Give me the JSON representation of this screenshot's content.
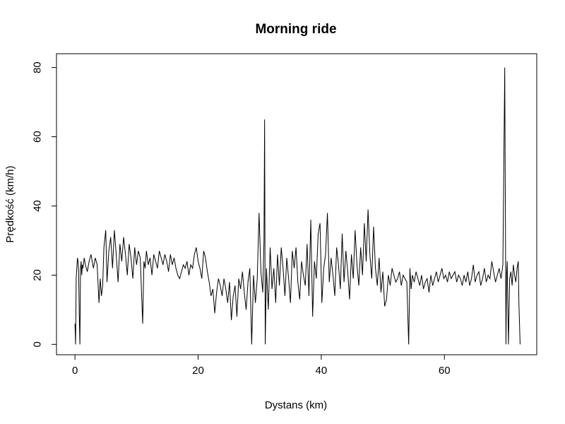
{
  "chart_data": {
    "type": "line",
    "title": "Morning ride",
    "xlabel": "Dystans (km)",
    "ylabel": "Prędkość (km/h)",
    "xlim": [
      -3,
      75
    ],
    "ylim": [
      -3,
      84
    ],
    "xticks": [
      0,
      20,
      40,
      60
    ],
    "yticks": [
      0,
      20,
      40,
      60,
      80
    ],
    "grid": false,
    "line_color": "#000000",
    "series": [
      {
        "x": [
          0.0,
          0.1,
          0.2,
          0.3,
          0.4,
          0.5,
          0.6,
          0.7,
          0.8,
          0.9,
          1.0,
          1.1,
          1.2,
          1.3,
          1.5,
          1.7,
          2.0,
          2.3,
          2.6,
          3.0,
          3.3,
          3.6,
          3.9,
          4.1,
          4.3,
          4.5,
          4.7,
          5.0,
          5.2,
          5.5,
          5.8,
          6.1,
          6.4,
          6.7,
          7.0,
          7.3,
          7.6,
          7.9,
          8.2,
          8.5,
          8.8,
          9.1,
          9.4,
          9.7,
          10.0,
          10.3,
          10.6,
          11.0,
          11.2,
          11.4,
          11.6,
          11.9,
          12.2,
          12.5,
          12.8,
          13.1,
          13.4,
          13.7,
          14.0,
          14.3,
          14.6,
          14.9,
          15.2,
          15.5,
          15.8,
          16.1,
          16.4,
          16.7,
          17.0,
          17.3,
          17.6,
          17.9,
          18.2,
          18.5,
          18.8,
          19.1,
          19.4,
          19.7,
          20.0,
          20.3,
          20.6,
          20.9,
          21.2,
          21.5,
          21.8,
          22.1,
          22.4,
          22.7,
          23.0,
          23.3,
          23.6,
          23.9,
          24.2,
          24.5,
          24.8,
          25.1,
          25.4,
          25.7,
          26.0,
          26.3,
          26.6,
          26.9,
          27.2,
          27.5,
          27.8,
          28.1,
          28.4,
          28.7,
          29.0,
          29.3,
          29.6,
          29.9,
          30.2,
          30.5,
          30.7,
          30.8,
          30.9,
          31.1,
          31.4,
          31.7,
          32.0,
          32.3,
          32.6,
          32.9,
          33.2,
          33.5,
          33.8,
          34.1,
          34.4,
          34.7,
          35.0,
          35.3,
          35.6,
          35.9,
          36.2,
          36.5,
          36.8,
          37.1,
          37.4,
          37.7,
          38.0,
          38.3,
          38.6,
          38.9,
          39.2,
          39.5,
          39.8,
          40.1,
          40.4,
          40.7,
          41.0,
          41.3,
          41.6,
          41.9,
          42.2,
          42.5,
          42.8,
          43.1,
          43.4,
          43.7,
          44.0,
          44.3,
          44.6,
          44.9,
          45.2,
          45.5,
          45.8,
          46.1,
          46.4,
          46.7,
          47.0,
          47.3,
          47.6,
          47.9,
          48.2,
          48.5,
          48.8,
          49.1,
          49.4,
          49.7,
          50.0,
          50.3,
          50.6,
          50.9,
          51.2,
          51.5,
          51.8,
          52.1,
          52.4,
          52.7,
          53.0,
          53.3,
          53.6,
          53.9,
          54.2,
          54.4,
          54.6,
          54.8,
          55.1,
          55.4,
          55.7,
          56.0,
          56.3,
          56.6,
          56.9,
          57.2,
          57.5,
          57.8,
          58.1,
          58.4,
          58.7,
          59.0,
          59.3,
          59.6,
          59.9,
          60.2,
          60.5,
          60.8,
          61.1,
          61.4,
          61.7,
          62.0,
          62.3,
          62.6,
          62.9,
          63.2,
          63.5,
          63.8,
          64.1,
          64.4,
          64.7,
          65.0,
          65.3,
          65.6,
          65.9,
          66.2,
          66.5,
          66.8,
          67.1,
          67.4,
          67.7,
          68.0,
          68.3,
          68.6,
          68.9,
          69.2,
          69.5,
          69.8,
          70.0,
          70.1,
          70.2,
          70.4,
          70.6,
          70.8,
          71.0,
          71.2,
          71.4,
          71.6,
          71.8,
          72.0,
          72.1,
          72.3
        ],
        "values": [
          6,
          0,
          19,
          22,
          25,
          24,
          21,
          8,
          0,
          22,
          24,
          20,
          23,
          22,
          25,
          23,
          21,
          24,
          26,
          22,
          25,
          23,
          12,
          19,
          14,
          17,
          28,
          33,
          18,
          27,
          31,
          22,
          33,
          26,
          18,
          29,
          24,
          31,
          26,
          20,
          29,
          25,
          19,
          28,
          23,
          27,
          25,
          6,
          24,
          22,
          27,
          23,
          25,
          20,
          26,
          24,
          22,
          27,
          25,
          23,
          26,
          24,
          21,
          26,
          23,
          25,
          22,
          20,
          19,
          21,
          23,
          22,
          24,
          20,
          23,
          22,
          26,
          28,
          24,
          22,
          19,
          27,
          25,
          21,
          18,
          14,
          16,
          9,
          15,
          19,
          17,
          14,
          19,
          16,
          12,
          18,
          7,
          14,
          17,
          8,
          19,
          16,
          21,
          15,
          10,
          18,
          22,
          0,
          20,
          12,
          19,
          38,
          21,
          15,
          30,
          65,
          0,
          22,
          10,
          28,
          16,
          22,
          12,
          26,
          17,
          28,
          22,
          14,
          25,
          19,
          12,
          27,
          22,
          28,
          18,
          13,
          24,
          20,
          17,
          29,
          14,
          36,
          8,
          24,
          19,
          32,
          35,
          12,
          22,
          26,
          38,
          18,
          25,
          20,
          14,
          28,
          23,
          16,
          32,
          18,
          27,
          21,
          13,
          26,
          19,
          33,
          23,
          17,
          28,
          20,
          35,
          24,
          39,
          26,
          19,
          34,
          22,
          17,
          25,
          15,
          21,
          11,
          13,
          20,
          17,
          22,
          20,
          18,
          19,
          21,
          17,
          20,
          19,
          18,
          0,
          22,
          16,
          20,
          18,
          21,
          19,
          17,
          20,
          16,
          18,
          19,
          15,
          20,
          17,
          19,
          21,
          18,
          20,
          22,
          19,
          20,
          18,
          21,
          19,
          20,
          21,
          18,
          20,
          19,
          17,
          20,
          18,
          21,
          17,
          19,
          23,
          18,
          20,
          21,
          17,
          19,
          22,
          18,
          20,
          19,
          24,
          21,
          18,
          20,
          22,
          19,
          23,
          80,
          0,
          20,
          24,
          0,
          19,
          21,
          17,
          23,
          20,
          18,
          22,
          24,
          12,
          0
        ]
      }
    ]
  }
}
